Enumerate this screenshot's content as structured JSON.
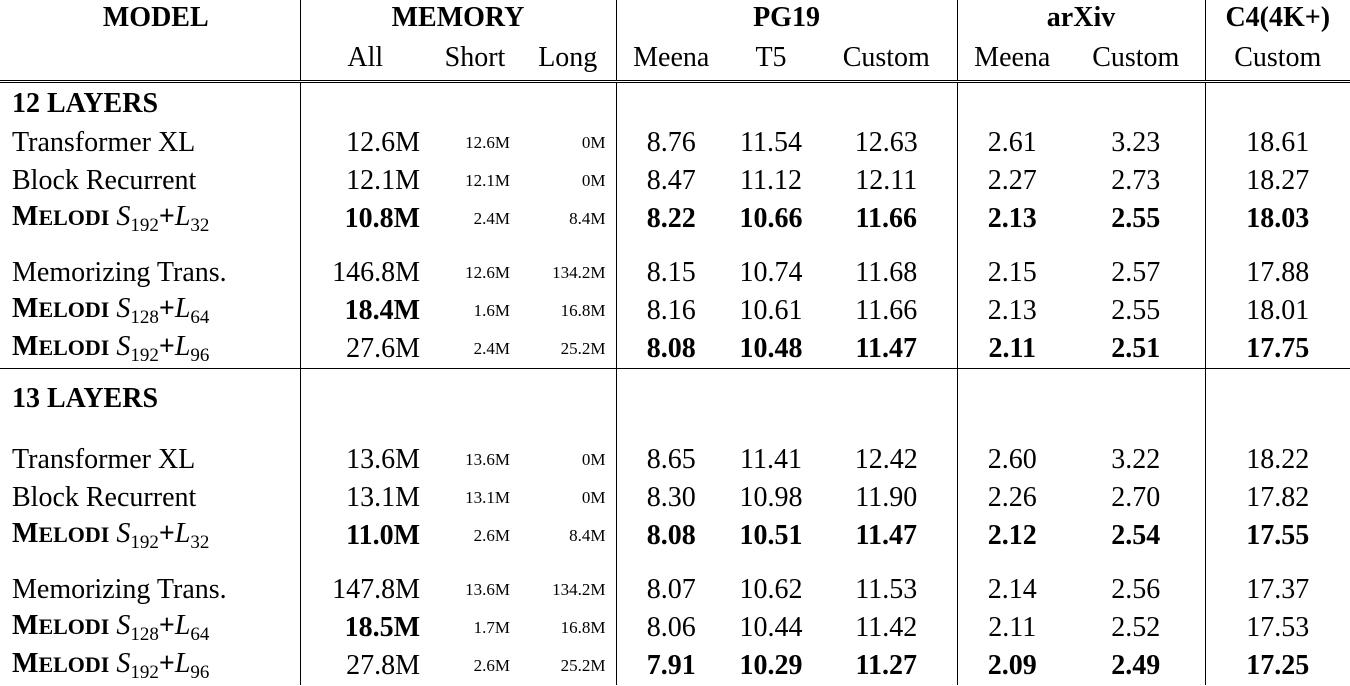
{
  "header": {
    "model": "MODEL",
    "memory": "MEMORY",
    "pg19": "PG19",
    "arxiv": "arXiv",
    "c4": "C4(4K+)",
    "sub": [
      "All",
      "Short",
      "Long",
      "Meena",
      "T5",
      "Custom",
      "Meena",
      "Custom",
      "Custom"
    ]
  },
  "sections": [
    {
      "title": "12 LAYERS",
      "groups": [
        [
          {
            "model": "Transformer XL",
            "values": [
              "12.6M",
              "12.6M",
              "0M",
              "8.76",
              "11.54",
              "12.63",
              "2.61",
              "3.23",
              "18.61"
            ],
            "bold": []
          },
          {
            "model": "Block Recurrent",
            "values": [
              "12.1M",
              "12.1M",
              "0M",
              "8.47",
              "11.12",
              "12.11",
              "2.27",
              "2.73",
              "18.27"
            ],
            "bold": []
          },
          {
            "model": "Melodi",
            "S": "192",
            "L": "32",
            "values": [
              "10.8M",
              "2.4M",
              "8.4M",
              "8.22",
              "10.66",
              "11.66",
              "2.13",
              "2.55",
              "18.03"
            ],
            "bold": [
              0,
              3,
              4,
              5,
              6,
              7,
              8
            ]
          }
        ],
        [
          {
            "model": "Memorizing Trans.",
            "values": [
              "146.8M",
              "12.6M",
              "134.2M",
              "8.15",
              "10.74",
              "11.68",
              "2.15",
              "2.57",
              "17.88"
            ],
            "bold": []
          },
          {
            "model": "Melodi",
            "S": "128",
            "L": "64",
            "values": [
              "18.4M",
              "1.6M",
              "16.8M",
              "8.16",
              "10.61",
              "11.66",
              "2.13",
              "2.55",
              "18.01"
            ],
            "bold": [
              0
            ]
          },
          {
            "model": "Melodi",
            "S": "192",
            "L": "96",
            "values": [
              "27.6M",
              "2.4M",
              "25.2M",
              "8.08",
              "10.48",
              "11.47",
              "2.11",
              "2.51",
              "17.75"
            ],
            "bold": [
              3,
              4,
              5,
              6,
              7,
              8
            ]
          }
        ]
      ]
    },
    {
      "title": "13 LAYERS",
      "groups": [
        [
          {
            "model": "Transformer XL",
            "values": [
              "13.6M",
              "13.6M",
              "0M",
              "8.65",
              "11.41",
              "12.42",
              "2.60",
              "3.22",
              "18.22"
            ],
            "bold": []
          },
          {
            "model": "Block Recurrent",
            "values": [
              "13.1M",
              "13.1M",
              "0M",
              "8.30",
              "10.98",
              "11.90",
              "2.26",
              "2.70",
              "17.82"
            ],
            "bold": []
          },
          {
            "model": "Melodi",
            "S": "192",
            "L": "32",
            "values": [
              "11.0M",
              "2.6M",
              "8.4M",
              "8.08",
              "10.51",
              "11.47",
              "2.12",
              "2.54",
              "17.55"
            ],
            "bold": [
              0,
              3,
              4,
              5,
              6,
              7,
              8
            ]
          }
        ],
        [
          {
            "model": "Memorizing Trans.",
            "values": [
              "147.8M",
              "13.6M",
              "134.2M",
              "8.07",
              "10.62",
              "11.53",
              "2.14",
              "2.56",
              "17.37"
            ],
            "bold": []
          },
          {
            "model": "Melodi",
            "S": "128",
            "L": "64",
            "values": [
              "18.5M",
              "1.7M",
              "16.8M",
              "8.06",
              "10.44",
              "11.42",
              "2.11",
              "2.52",
              "17.53"
            ],
            "bold": [
              0
            ]
          },
          {
            "model": "Melodi",
            "S": "192",
            "L": "96",
            "values": [
              "27.8M",
              "2.6M",
              "25.2M",
              "7.91",
              "10.29",
              "11.27",
              "2.09",
              "2.49",
              "17.25"
            ],
            "bold": [
              3,
              4,
              5,
              6,
              7,
              8
            ]
          }
        ]
      ]
    }
  ]
}
